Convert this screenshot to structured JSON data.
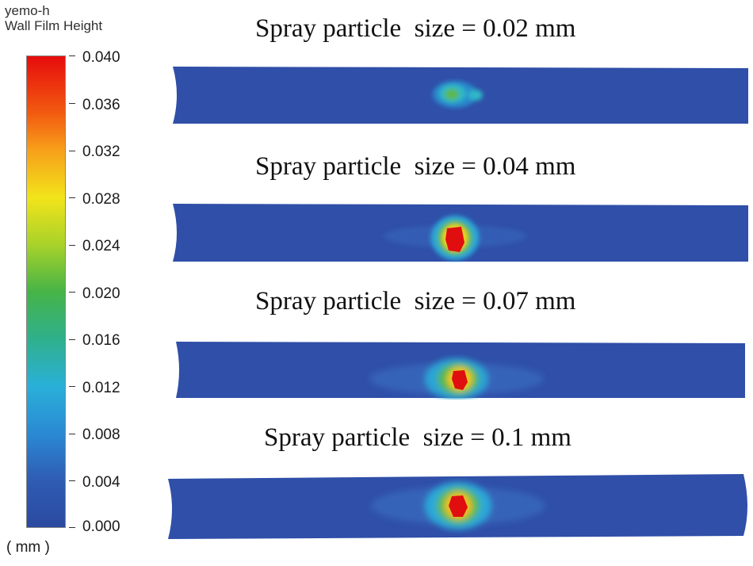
{
  "legend": {
    "title_line1": "yemo-h",
    "title_line2": "Wall Film Height",
    "unit": "( mm )",
    "ticks": [
      "0.040",
      "0.036",
      "0.032",
      "0.028",
      "0.024",
      "0.020",
      "0.016",
      "0.012",
      "0.008",
      "0.004",
      "0.000"
    ],
    "colors": [
      "#e60c0c",
      "#f7a01a",
      "#f2e41a",
      "#46b447",
      "#2ab0d8",
      "#2b4aa0"
    ]
  },
  "panels": [
    {
      "title": "Spray particle  size = 0.02 mm",
      "particle_size_mm": 0.02
    },
    {
      "title": "Spray particle  size = 0.04 mm",
      "particle_size_mm": 0.04
    },
    {
      "title": "Spray particle  size = 0.07 mm",
      "particle_size_mm": 0.07
    },
    {
      "title": "Spray particle  size = 0.1 mm",
      "particle_size_mm": 0.1
    }
  ]
}
